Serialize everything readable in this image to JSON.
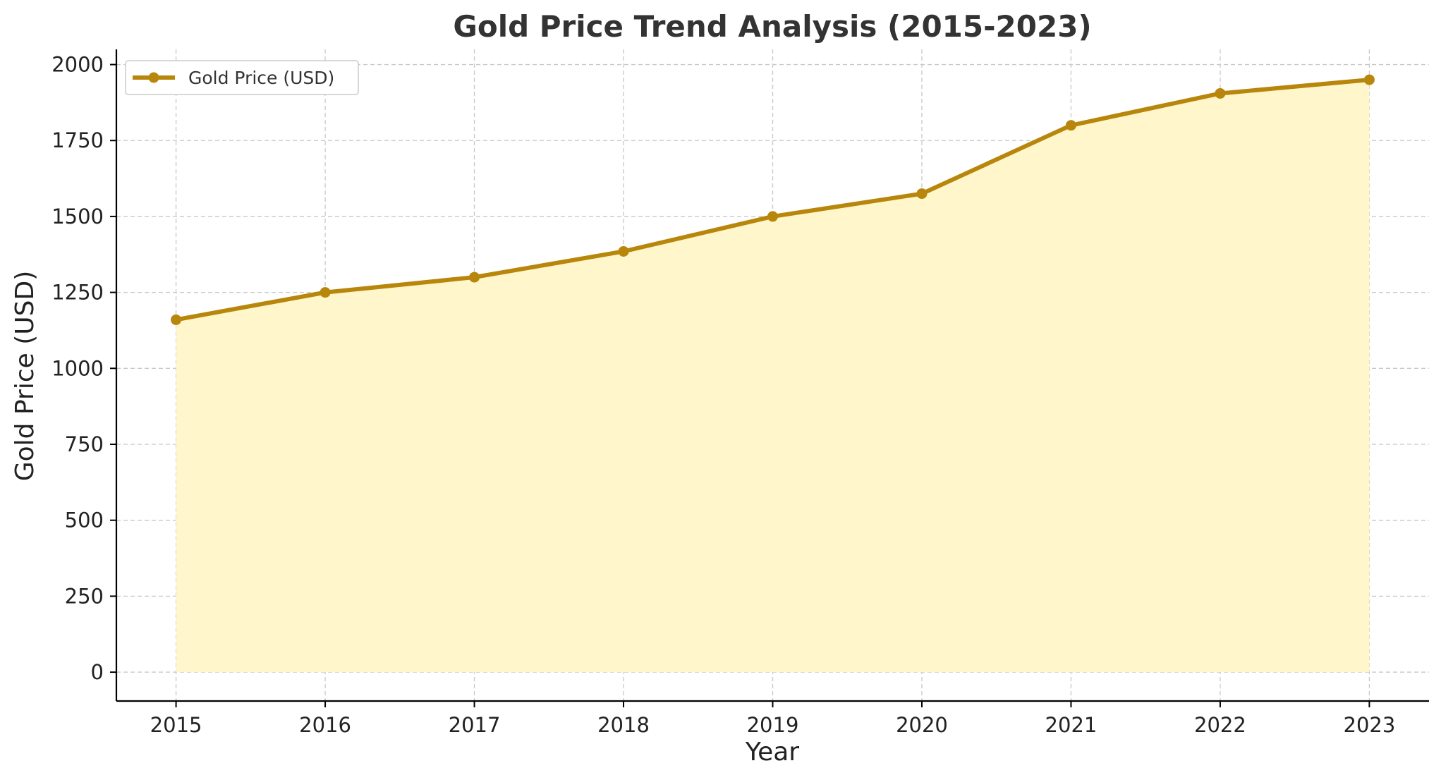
{
  "chart_data": {
    "type": "area",
    "title": "Gold Price Trend Analysis (2015-2023)",
    "xlabel": "Year",
    "ylabel": "Gold Price (USD)",
    "x": [
      2015,
      2016,
      2017,
      2018,
      2019,
      2020,
      2021,
      2022,
      2023
    ],
    "series": [
      {
        "name": "Gold Price (USD)",
        "values": [
          1160,
          1250,
          1300,
          1385,
          1500,
          1575,
          1800,
          1905,
          1950
        ],
        "line_color": "#b8860b",
        "fill_color": "#fff6cc"
      }
    ],
    "xlim": [
      2014.6,
      2023.4
    ],
    "ylim": [
      -95,
      2050
    ],
    "xticks": [
      "2015",
      "2016",
      "2017",
      "2018",
      "2019",
      "2020",
      "2021",
      "2022",
      "2023"
    ],
    "yticks": [
      "0",
      "250",
      "500",
      "750",
      "1000",
      "1250",
      "1500",
      "1750",
      "2000"
    ],
    "grid": true,
    "legend_position": "top-left"
  }
}
